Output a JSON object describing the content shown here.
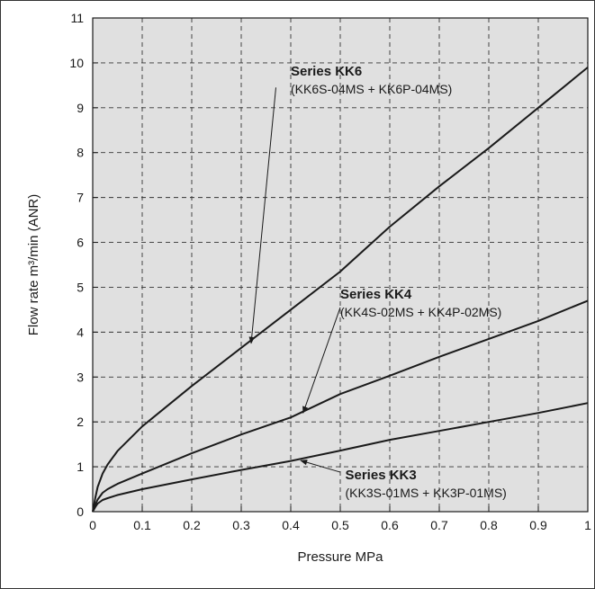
{
  "chart_data": {
    "type": "line",
    "xlabel": "Pressure MPa",
    "ylabel": "Flow rate m³/min (ANR)",
    "xlim": [
      0,
      1
    ],
    "ylim": [
      0,
      11
    ],
    "x_ticks": [
      "0",
      "0.1",
      "0.2",
      "0.3",
      "0.4",
      "0.5",
      "0.6",
      "0.7",
      "0.8",
      "0.9",
      "1"
    ],
    "y_ticks": [
      "0",
      "1",
      "2",
      "3",
      "4",
      "5",
      "6",
      "7",
      "8",
      "9",
      "10",
      "11"
    ],
    "grid": true,
    "plot_background": "#e0e0e0",
    "line_color": "#1a1a1a",
    "series": [
      {
        "name": "Series KK6",
        "subtitle": "(KK6S-04MS + KK6P-04MS)",
        "x": [
          0,
          0.005,
          0.01,
          0.02,
          0.03,
          0.05,
          0.1,
          0.2,
          0.3,
          0.4,
          0.5,
          0.6,
          0.7,
          0.8,
          0.9,
          1.0
        ],
        "y": [
          0,
          0.3,
          0.55,
          0.85,
          1.05,
          1.35,
          1.9,
          2.8,
          3.65,
          4.5,
          5.35,
          6.35,
          7.25,
          8.1,
          9.0,
          9.9
        ]
      },
      {
        "name": "Series KK4",
        "subtitle": "(KK4S-02MS + KK4P-02MS)",
        "x": [
          0,
          0.005,
          0.01,
          0.02,
          0.03,
          0.05,
          0.1,
          0.2,
          0.3,
          0.4,
          0.5,
          0.6,
          0.7,
          0.8,
          0.9,
          1.0
        ],
        "y": [
          0,
          0.15,
          0.27,
          0.42,
          0.5,
          0.62,
          0.85,
          1.3,
          1.72,
          2.1,
          2.62,
          3.03,
          3.45,
          3.85,
          4.25,
          4.7
        ]
      },
      {
        "name": "Series KK3",
        "subtitle": "(KK3S-01MS + KK3P-01MS)",
        "x": [
          0,
          0.005,
          0.01,
          0.02,
          0.03,
          0.05,
          0.1,
          0.2,
          0.3,
          0.4,
          0.5,
          0.6,
          0.7,
          0.8,
          0.9,
          1.0
        ],
        "y": [
          0,
          0.1,
          0.18,
          0.26,
          0.3,
          0.37,
          0.5,
          0.72,
          0.93,
          1.13,
          1.36,
          1.6,
          1.8,
          2.0,
          2.2,
          2.42
        ]
      }
    ],
    "annotations": [
      {
        "series": 0,
        "label_at": [
          0.4,
          9.72
        ],
        "arrow_from": [
          0.37,
          9.45
        ],
        "arrow_to": [
          0.32,
          3.75
        ]
      },
      {
        "series": 1,
        "label_at": [
          0.5,
          4.75
        ],
        "arrow_from": [
          0.5,
          4.55
        ],
        "arrow_to": [
          0.425,
          2.2
        ]
      },
      {
        "series": 2,
        "label_at": [
          0.51,
          0.72
        ],
        "arrow_from": [
          0.5,
          0.88
        ],
        "arrow_to": [
          0.42,
          1.14
        ]
      }
    ]
  }
}
